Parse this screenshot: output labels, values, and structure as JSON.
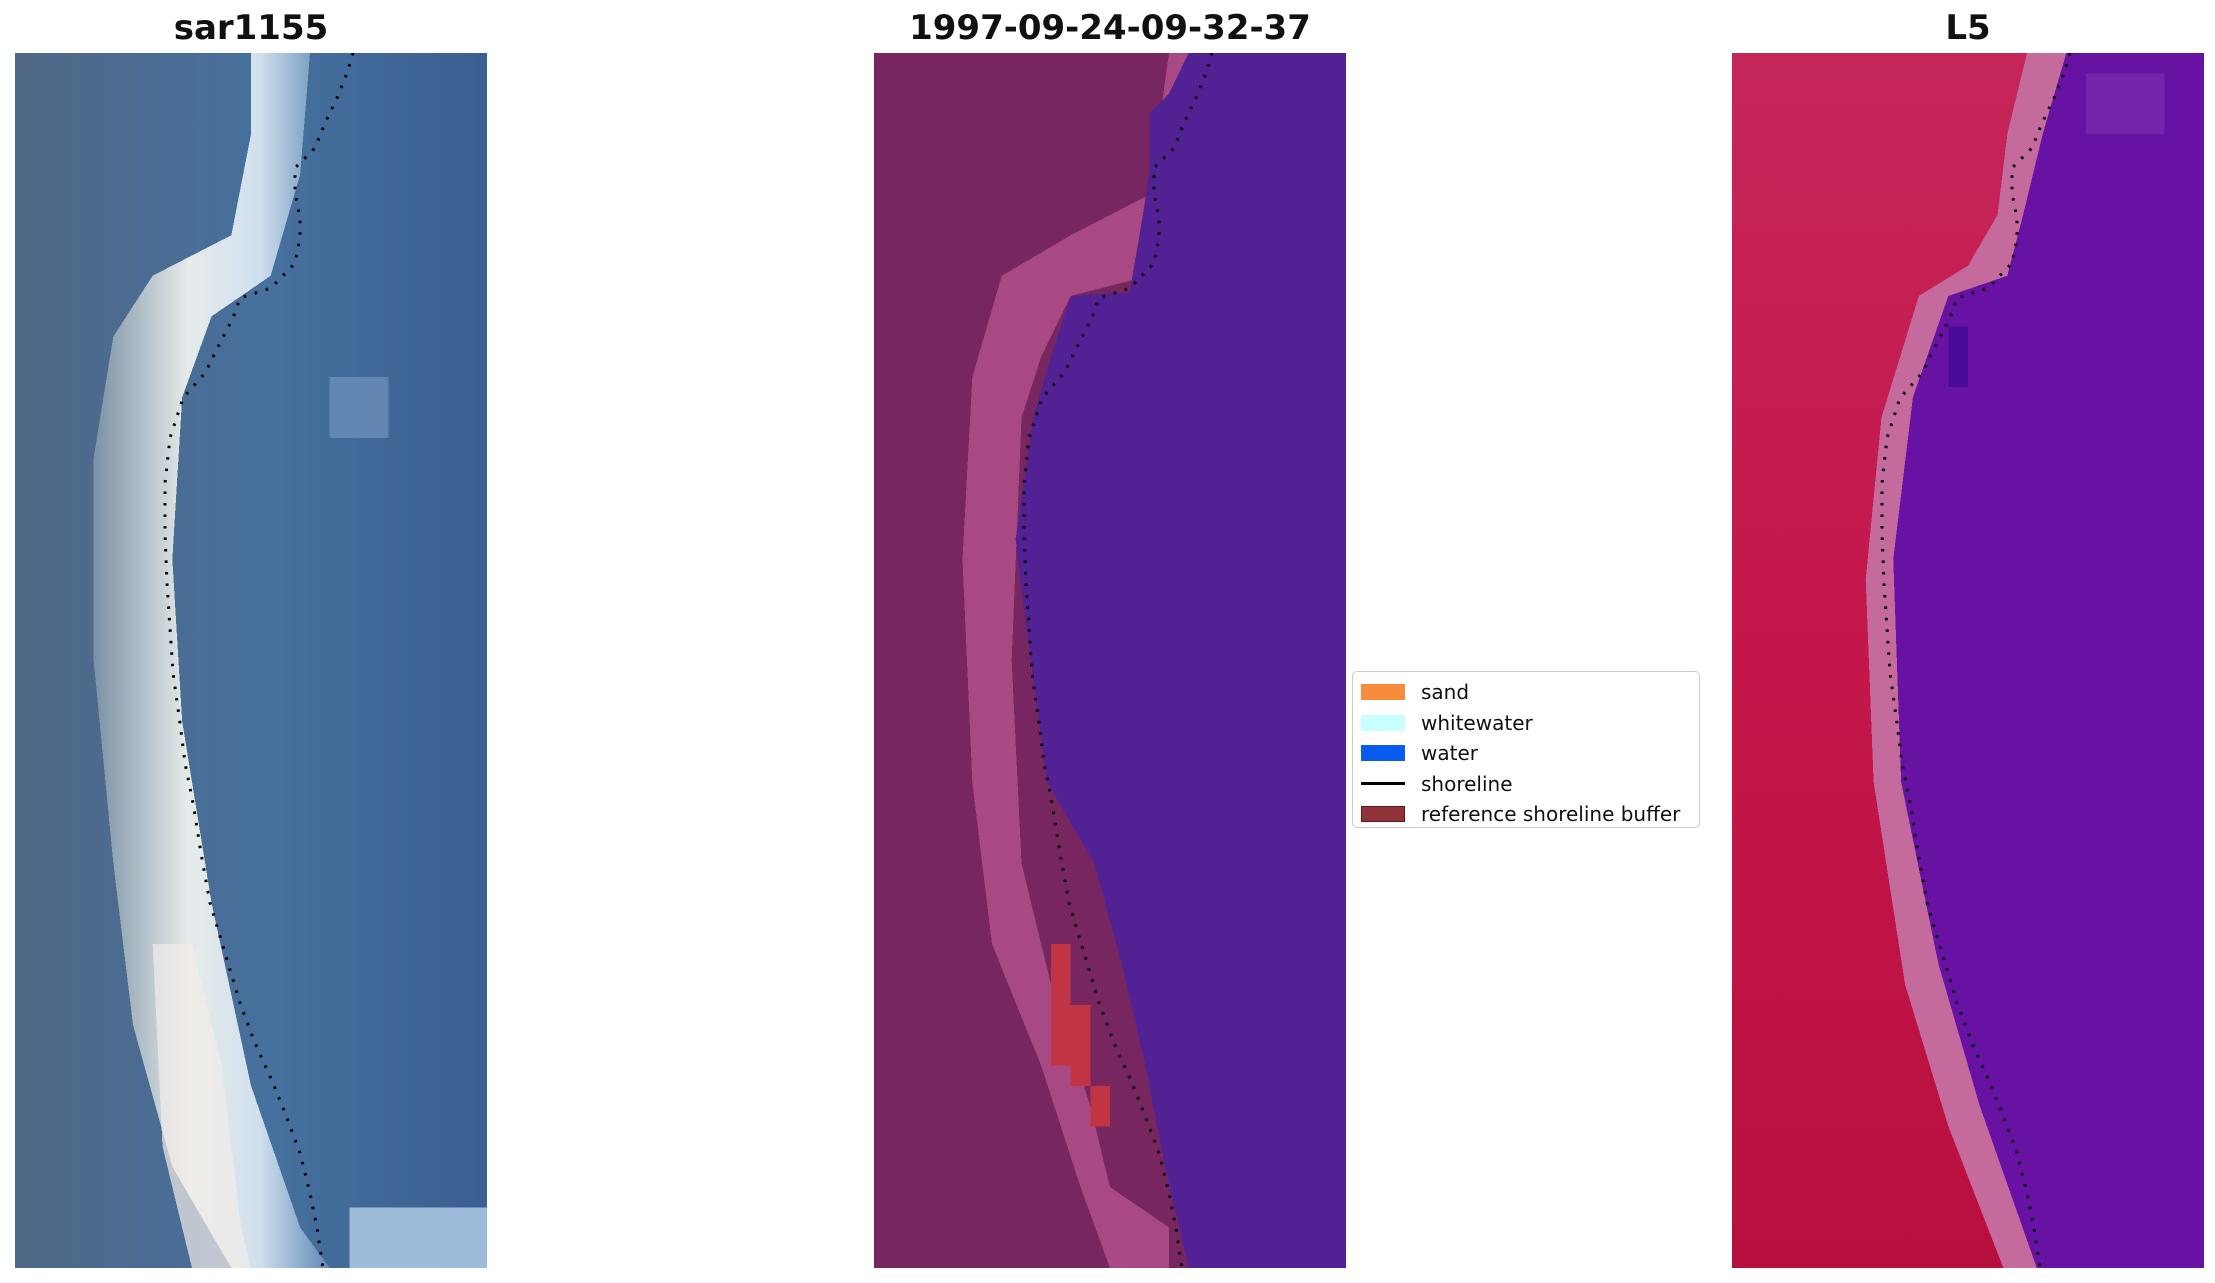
{
  "panels": {
    "left_title": "sar1155",
    "middle_title": "1997-09-24-09-32-37",
    "right_title": "L5"
  },
  "legend": {
    "items": [
      {
        "label": "sand",
        "color": "#f98b3c",
        "kind": "patch"
      },
      {
        "label": "whitewater",
        "color": "#c8fefe",
        "kind": "patch"
      },
      {
        "label": "water",
        "color": "#0a5bf0",
        "kind": "patch"
      },
      {
        "label": "shoreline",
        "color": "#000000",
        "kind": "line"
      },
      {
        "label": "reference shoreline buffer",
        "color": "#8f3338",
        "kind": "patch"
      }
    ]
  },
  "colors": {
    "rgb_background": "#4f6a8f",
    "rgb_water": "#3a6aa0",
    "rgb_sand_bright": "#f2ecec",
    "class_land": "#772660",
    "class_land_light": "#a84884",
    "class_water": "#522194",
    "class_sand": "#c03444",
    "index_land": "#c21c4c",
    "index_water": "#6812a4",
    "index_boundary": "#c46a9c",
    "shoreline": "#000000"
  }
}
